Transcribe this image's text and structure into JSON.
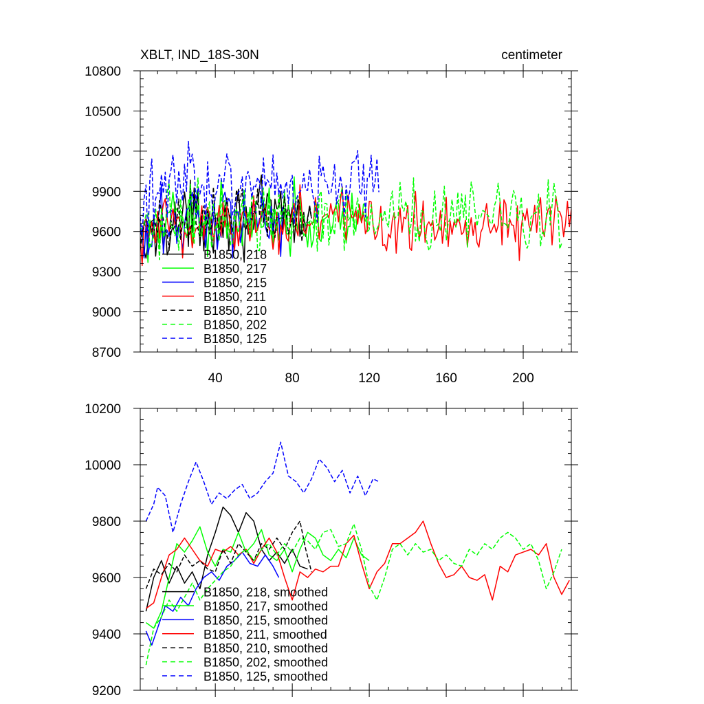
{
  "figure": {
    "title_left": "XBLT, IND_18S-30N",
    "title_right": "centimeter"
  },
  "chart_data": [
    {
      "type": "line",
      "panel": "top",
      "xlim": [
        1,
        225
      ],
      "ylim": [
        8700,
        10800
      ],
      "xticks": [
        40,
        80,
        120,
        160,
        200
      ],
      "xtick_labels": [
        "40",
        "80",
        "120",
        "160",
        "200"
      ],
      "yticks": [
        8700,
        9000,
        9300,
        9600,
        9900,
        10200,
        10500,
        10800
      ],
      "ytick_labels": [
        "8700",
        "9000",
        "9300",
        "9600",
        "9900",
        "10200",
        "10500",
        "10800"
      ],
      "legend_position": "bottom-left",
      "grid": false,
      "series": [
        {
          "name": "B1850, 218",
          "color": "#000000",
          "dash": "solid",
          "start": 1,
          "end": 90,
          "base": 9610,
          "spread": 190,
          "trend": 90
        },
        {
          "name": "B1850, 217",
          "color": "#00ff00",
          "dash": "solid",
          "start": 1,
          "end": 120,
          "base": 9610,
          "spread": 170,
          "trend": 100
        },
        {
          "name": "B1850, 215",
          "color": "#0000ff",
          "dash": "solid",
          "start": 1,
          "end": 75,
          "base": 9600,
          "spread": 200,
          "trend": 110
        },
        {
          "name": "B1850, 211",
          "color": "#ff0000",
          "dash": "solid",
          "start": 1,
          "end": 225,
          "base": 9650,
          "spread": 190,
          "trend": 30
        },
        {
          "name": "B1850, 210",
          "color": "#000000",
          "dash": "dashed",
          "start": 1,
          "end": 90,
          "base": 9660,
          "spread": 170,
          "trend": 60
        },
        {
          "name": "B1850, 202",
          "color": "#00ff00",
          "dash": "dashed",
          "start": 1,
          "end": 220,
          "base": 9680,
          "spread": 190,
          "trend": 30
        },
        {
          "name": "B1850, 125",
          "color": "#0000ff",
          "dash": "dashed",
          "start": 1,
          "end": 125,
          "base": 9880,
          "spread": 200,
          "trend": 90
        }
      ]
    },
    {
      "type": "line",
      "panel": "bottom",
      "xlim": [
        1,
        225
      ],
      "ylim": [
        9200,
        10200
      ],
      "xticks": [
        40,
        80,
        120,
        160,
        200
      ],
      "xtick_labels": [],
      "yticks": [
        9200,
        9400,
        9600,
        9800,
        10000,
        10200
      ],
      "ytick_labels": [
        "9200",
        "9400",
        "9600",
        "9800",
        "10000",
        "10200"
      ],
      "legend_position": "bottom-left",
      "grid": false,
      "series": [
        {
          "name": "B1850, 218, smoothed",
          "color": "#000000",
          "dash": "solid",
          "points": [
            [
              4,
              9480
            ],
            [
              8,
              9600
            ],
            [
              12,
              9660
            ],
            [
              16,
              9580
            ],
            [
              20,
              9640
            ],
            [
              24,
              9580
            ],
            [
              28,
              9620
            ],
            [
              32,
              9560
            ],
            [
              36,
              9680
            ],
            [
              40,
              9760
            ],
            [
              44,
              9850
            ],
            [
              48,
              9820
            ],
            [
              52,
              9760
            ],
            [
              56,
              9830
            ],
            [
              60,
              9800
            ],
            [
              64,
              9700
            ],
            [
              68,
              9660
            ],
            [
              72,
              9690
            ],
            [
              76,
              9650
            ],
            [
              80,
              9700
            ],
            [
              84,
              9640
            ],
            [
              88,
              9630
            ]
          ]
        },
        {
          "name": "B1850, 217, smoothed",
          "color": "#00ff00",
          "dash": "solid",
          "points": [
            [
              4,
              9440
            ],
            [
              8,
              9420
            ],
            [
              12,
              9480
            ],
            [
              16,
              9600
            ],
            [
              20,
              9720
            ],
            [
              24,
              9690
            ],
            [
              28,
              9730
            ],
            [
              32,
              9780
            ],
            [
              36,
              9690
            ],
            [
              40,
              9640
            ],
            [
              44,
              9700
            ],
            [
              48,
              9690
            ],
            [
              52,
              9760
            ],
            [
              56,
              9690
            ],
            [
              60,
              9720
            ],
            [
              64,
              9770
            ],
            [
              68,
              9680
            ],
            [
              72,
              9660
            ],
            [
              76,
              9700
            ],
            [
              80,
              9620
            ],
            [
              84,
              9700
            ],
            [
              88,
              9760
            ],
            [
              92,
              9740
            ],
            [
              96,
              9680
            ],
            [
              100,
              9660
            ],
            [
              104,
              9700
            ],
            [
              108,
              9670
            ],
            [
              112,
              9740
            ],
            [
              116,
              9680
            ],
            [
              120,
              9660
            ]
          ]
        },
        {
          "name": "B1850, 215, smoothed",
          "color": "#0000ff",
          "dash": "solid",
          "points": [
            [
              4,
              9410
            ],
            [
              7,
              9360
            ],
            [
              10,
              9420
            ],
            [
              14,
              9500
            ],
            [
              18,
              9480
            ],
            [
              22,
              9530
            ],
            [
              26,
              9500
            ],
            [
              30,
              9560
            ],
            [
              34,
              9600
            ],
            [
              38,
              9620
            ],
            [
              42,
              9590
            ],
            [
              46,
              9640
            ],
            [
              50,
              9660
            ],
            [
              54,
              9690
            ],
            [
              58,
              9650
            ],
            [
              62,
              9640
            ],
            [
              66,
              9680
            ],
            [
              70,
              9640
            ],
            [
              73,
              9600
            ]
          ]
        },
        {
          "name": "B1850, 211, smoothed",
          "color": "#ff0000",
          "dash": "solid",
          "points": [
            [
              4,
              9490
            ],
            [
              8,
              9510
            ],
            [
              12,
              9600
            ],
            [
              16,
              9680
            ],
            [
              20,
              9700
            ],
            [
              24,
              9740
            ],
            [
              28,
              9700
            ],
            [
              32,
              9660
            ],
            [
              36,
              9640
            ],
            [
              40,
              9700
            ],
            [
              44,
              9690
            ],
            [
              48,
              9710
            ],
            [
              52,
              9680
            ],
            [
              56,
              9700
            ],
            [
              60,
              9650
            ],
            [
              64,
              9700
            ],
            [
              68,
              9740
            ],
            [
              72,
              9690
            ],
            [
              76,
              9600
            ],
            [
              80,
              9520
            ],
            [
              84,
              9620
            ],
            [
              88,
              9600
            ],
            [
              92,
              9630
            ],
            [
              96,
              9620
            ],
            [
              100,
              9640
            ],
            [
              104,
              9640
            ],
            [
              108,
              9720
            ],
            [
              112,
              9750
            ],
            [
              116,
              9650
            ],
            [
              120,
              9560
            ],
            [
              124,
              9620
            ],
            [
              128,
              9650
            ],
            [
              132,
              9720
            ],
            [
              136,
              9720
            ],
            [
              140,
              9740
            ],
            [
              144,
              9760
            ],
            [
              148,
              9800
            ],
            [
              152,
              9720
            ],
            [
              156,
              9650
            ],
            [
              160,
              9600
            ],
            [
              164,
              9610
            ],
            [
              168,
              9640
            ],
            [
              172,
              9600
            ],
            [
              176,
              9590
            ],
            [
              180,
              9610
            ],
            [
              184,
              9520
            ],
            [
              188,
              9640
            ],
            [
              192,
              9620
            ],
            [
              196,
              9680
            ],
            [
              200,
              9690
            ],
            [
              204,
              9700
            ],
            [
              208,
              9680
            ],
            [
              212,
              9720
            ],
            [
              216,
              9600
            ],
            [
              220,
              9540
            ],
            [
              224,
              9590
            ]
          ]
        },
        {
          "name": "B1850, 210, smoothed",
          "color": "#000000",
          "dash": "dashed",
          "points": [
            [
              4,
              9560
            ],
            [
              8,
              9630
            ],
            [
              12,
              9610
            ],
            [
              16,
              9650
            ],
            [
              20,
              9620
            ],
            [
              24,
              9680
            ],
            [
              28,
              9640
            ],
            [
              32,
              9660
            ],
            [
              36,
              9630
            ],
            [
              40,
              9620
            ],
            [
              44,
              9700
            ],
            [
              48,
              9650
            ],
            [
              52,
              9720
            ],
            [
              56,
              9690
            ],
            [
              60,
              9660
            ],
            [
              64,
              9720
            ],
            [
              68,
              9700
            ],
            [
              72,
              9740
            ],
            [
              76,
              9700
            ],
            [
              80,
              9760
            ],
            [
              84,
              9800
            ],
            [
              87,
              9700
            ],
            [
              90,
              9620
            ]
          ]
        },
        {
          "name": "B1850, 202, smoothed",
          "color": "#00ff00",
          "dash": "dashed",
          "points": [
            [
              4,
              9290
            ],
            [
              8,
              9420
            ],
            [
              12,
              9460
            ],
            [
              16,
              9520
            ],
            [
              20,
              9480
            ],
            [
              24,
              9530
            ],
            [
              28,
              9580
            ],
            [
              32,
              9520
            ],
            [
              36,
              9560
            ],
            [
              40,
              9590
            ],
            [
              44,
              9620
            ],
            [
              48,
              9640
            ],
            [
              52,
              9680
            ],
            [
              56,
              9700
            ],
            [
              60,
              9660
            ],
            [
              64,
              9700
            ],
            [
              68,
              9720
            ],
            [
              72,
              9680
            ],
            [
              76,
              9720
            ],
            [
              80,
              9690
            ],
            [
              84,
              9740
            ],
            [
              88,
              9730
            ],
            [
              92,
              9700
            ],
            [
              96,
              9760
            ],
            [
              100,
              9770
            ],
            [
              104,
              9710
            ],
            [
              108,
              9720
            ],
            [
              112,
              9790
            ],
            [
              116,
              9700
            ],
            [
              120,
              9570
            ],
            [
              124,
              9520
            ],
            [
              128,
              9600
            ],
            [
              132,
              9700
            ],
            [
              136,
              9720
            ],
            [
              140,
              9680
            ],
            [
              144,
              9720
            ],
            [
              148,
              9690
            ],
            [
              152,
              9700
            ],
            [
              156,
              9660
            ],
            [
              160,
              9680
            ],
            [
              164,
              9650
            ],
            [
              168,
              9640
            ],
            [
              172,
              9700
            ],
            [
              176,
              9680
            ],
            [
              180,
              9720
            ],
            [
              184,
              9700
            ],
            [
              188,
              9740
            ],
            [
              192,
              9760
            ],
            [
              196,
              9740
            ],
            [
              200,
              9700
            ],
            [
              204,
              9720
            ],
            [
              208,
              9660
            ],
            [
              212,
              9560
            ],
            [
              216,
              9620
            ],
            [
              220,
              9700
            ]
          ]
        },
        {
          "name": "B1850, 125, smoothed",
          "color": "#0000ff",
          "dash": "dashed",
          "points": [
            [
              4,
              9800
            ],
            [
              8,
              9860
            ],
            [
              10,
              9920
            ],
            [
              14,
              9890
            ],
            [
              18,
              9760
            ],
            [
              22,
              9860
            ],
            [
              26,
              9940
            ],
            [
              30,
              10010
            ],
            [
              34,
              9940
            ],
            [
              38,
              9860
            ],
            [
              42,
              9900
            ],
            [
              46,
              9880
            ],
            [
              50,
              9910
            ],
            [
              54,
              9930
            ],
            [
              58,
              9880
            ],
            [
              62,
              9900
            ],
            [
              66,
              9940
            ],
            [
              70,
              9970
            ],
            [
              74,
              10080
            ],
            [
              78,
              9960
            ],
            [
              82,
              9940
            ],
            [
              86,
              9900
            ],
            [
              90,
              9950
            ],
            [
              94,
              10020
            ],
            [
              98,
              9990
            ],
            [
              102,
              9940
            ],
            [
              106,
              9980
            ],
            [
              110,
              9900
            ],
            [
              114,
              9960
            ],
            [
              118,
              9890
            ],
            [
              122,
              9950
            ],
            [
              125,
              9940
            ]
          ]
        }
      ]
    }
  ]
}
